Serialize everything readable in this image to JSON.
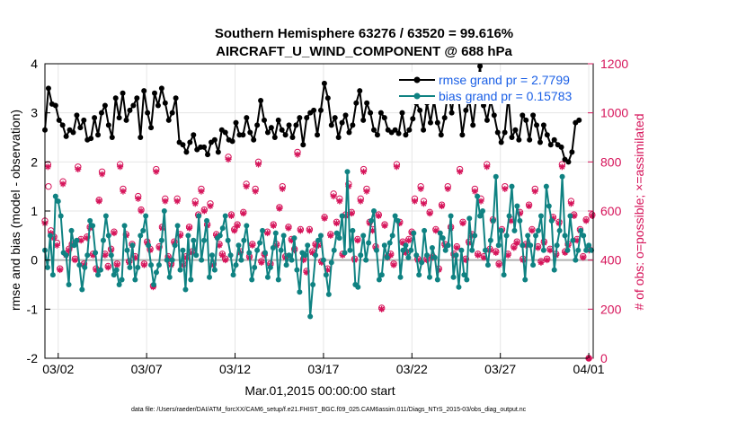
{
  "chart_data": {
    "type": "line",
    "title": "Southern Hemisphere 63276 / 63520 = 99.616%",
    "subtitle": "AIRCRAFT_U_WIND_COMPONENT @ 688 hPa",
    "xlabel": "Mar.01,2015 00:00:00 start",
    "ylabel_left": "rmse and bias (model - observation)",
    "ylabel_right": "# of obs: o=possible; ×=assimilated",
    "footnote": "data file: /Users/raeder/DAI/ATM_forcXX/CAM6_setup/f.e21.FHIST_BGC.f09_025.CAM6assim.011/Diags_NTrS_2015-03/obs_diag_output.nc",
    "x_range_days": [
      0.25,
      31.25
    ],
    "x_ticks": [
      {
        "day": 1,
        "label": "03/02"
      },
      {
        "day": 6,
        "label": "03/07"
      },
      {
        "day": 11,
        "label": "03/12"
      },
      {
        "day": 16,
        "label": "03/17"
      },
      {
        "day": 21,
        "label": "03/22"
      },
      {
        "day": 26,
        "label": "03/27"
      },
      {
        "day": 31,
        "label": "04/01"
      }
    ],
    "ylim_left": [
      -2,
      4
    ],
    "yticks_left": [
      "-2",
      "-1",
      "0",
      "1",
      "2",
      "3",
      "4"
    ],
    "ylim_right": [
      0,
      1200
    ],
    "yticks_right": [
      "0",
      "200",
      "400",
      "600",
      "800",
      "1000",
      "1200"
    ],
    "grid": true,
    "legend_position": "top-right",
    "colors": {
      "rmse": "#000000",
      "bias": "#0f8282",
      "obs": "#d6145a",
      "zero_line": "#b0b0b0",
      "legend_text": "#1a5fe6"
    },
    "series": [
      {
        "name": "rmse grand pr = 2.7799",
        "legend": "rmse grand pr = 2.7799",
        "axis": "left",
        "values": [
          2.65,
          3.5,
          3.18,
          3.15,
          2.85,
          2.75,
          2.52,
          2.65,
          2.6,
          2.95,
          2.7,
          2.85,
          2.45,
          2.48,
          2.9,
          2.55,
          3.0,
          3.15,
          2.75,
          2.5,
          3.3,
          2.9,
          3.4,
          2.85,
          3.05,
          3.15,
          3.3,
          2.5,
          3.45,
          3.0,
          2.7,
          3.4,
          3.15,
          3.5,
          3.2,
          2.85,
          3.0,
          3.3,
          2.4,
          2.35,
          2.2,
          2.4,
          2.55,
          2.25,
          2.3,
          2.3,
          2.15,
          2.4,
          2.45,
          2.2,
          2.65,
          2.6,
          2.45,
          2.42,
          2.8,
          2.55,
          2.55,
          2.9,
          2.6,
          2.45,
          2.75,
          3.25,
          2.85,
          2.6,
          2.7,
          2.5,
          2.85,
          2.65,
          2.55,
          2.75,
          2.5,
          2.75,
          2.9,
          2.35,
          2.9,
          3.0,
          3.05,
          2.55,
          3.05,
          3.6,
          3.3,
          2.75,
          2.9,
          2.5,
          2.8,
          2.95,
          2.6,
          2.75,
          3.2,
          3.45,
          2.85,
          3.2,
          3.0,
          2.65,
          2.55,
          3.0,
          2.9,
          2.65,
          2.6,
          2.65,
          2.58,
          3.0,
          2.55,
          2.65,
          2.88,
          3.2,
          3.05,
          2.65,
          3.2,
          2.8,
          3.25,
          2.8,
          2.55,
          2.9,
          3.45,
          3.0,
          3.55,
          3.25,
          2.55,
          3.05,
          3.25,
          2.75,
          3.35,
          3.95,
          3.15,
          2.85,
          3.25,
          2.95,
          2.6,
          2.4,
          2.6,
          3.35,
          2.5,
          2.65,
          2.45,
          2.95,
          2.85,
          2.45,
          2.95,
          2.75,
          2.4,
          2.75,
          2.55,
          2.35,
          2.45,
          2.35,
          2.3,
          2.05,
          2.0,
          2.2,
          2.8,
          2.85
        ],
        "start_day": 0.25,
        "step_days": 0.2
      },
      {
        "name": "bias grand pr = 0.15783",
        "legend": "bias grand pr = 0.15783",
        "axis": "left",
        "values": [
          0.2,
          -0.15,
          0.5,
          -0.3,
          1.3,
          1.2,
          0.9,
          0.15,
          0.1,
          -0.5,
          0.6,
          0.3,
          0.4,
          -0.1,
          -0.6,
          -0.15,
          0.1,
          0.8,
          0.7,
          0.15,
          -0.3,
          -0.2,
          0.4,
          0.9,
          0.5,
          0.1,
          -0.3,
          -0.2,
          -0.5,
          -0.4,
          0.7,
          0.2,
          -0.15,
          0.3,
          -0.4,
          -0.15,
          0.5,
          0.6,
          0.9,
          0.3,
          -0.1,
          -0.5,
          -0.25,
          -0.1,
          0.4,
          1.0,
          0.0,
          -0.35,
          0.0,
          0.3,
          0.7,
          -0.2,
          0.2,
          -0.6,
          0.5,
          -0.4,
          0.4,
          0.1,
          0.9,
          0.0,
          0.4,
          0.8,
          -0.35,
          0.1,
          -0.2,
          0.45,
          0.5,
          0.65,
          0.9,
          0.4,
          0.1,
          -0.3,
          -0.1,
          0.3,
          0.0,
          0.4,
          0.7,
          0.15,
          -0.4,
          -0.15,
          0.2,
          0.35,
          0.6,
          0.15,
          -0.35,
          -0.15,
          0.25,
          0.55,
          -0.4,
          0.2,
          0.5,
          -0.1,
          0.1,
          0.0,
          0.45,
          -0.2,
          -0.65,
          0.15,
          0.1,
          0.3,
          -1.15,
          -0.5,
          0.1,
          0.4,
          0.5,
          0.0,
          -0.3,
          -0.7,
          -0.05,
          0.2,
          0.55,
          0.45,
          0.9,
          0.15,
          1.8,
          0.2,
          0.6,
          -0.5,
          -0.55,
          0.1,
          0.5,
          0.0,
          0.35,
          0.8,
          1.0,
          0.2,
          -0.4,
          -0.3,
          0.3,
          0.05,
          0.35,
          0.5,
          0.9,
          0.8,
          -0.35,
          0.2,
          0.3,
          0.05,
          0.2,
          0.55,
          0.1,
          -0.3,
          -0.05,
          0.6,
          0.1,
          -0.35,
          0.25,
          0.05,
          -0.4,
          0.55,
          0.45,
          0.2,
          0.3,
          0.9,
          -0.35,
          0.1,
          -0.55,
          0.2,
          -0.3,
          -0.4,
          0.85,
          0.2,
          0.5,
          1.3,
          0.9,
          1.0,
          0.2,
          -0.1,
          0.4,
          0.8,
          1.7,
          0.3,
          0.6,
          -0.3,
          0.5,
          0.9,
          1.5,
          0.6,
          1.1,
          0.8,
          0.3,
          -0.4,
          0.5,
          0.3,
          -0.1,
          0.5,
          0.6,
          0.9,
          0.2,
          1.5,
          1.1,
          0.8,
          -0.2,
          0.3,
          0.6,
          1.7,
          0.5,
          0.2,
          0.9,
          0.4,
          0.0,
          0.2,
          0.6,
          0.5,
          0.2,
          0.3,
          0.2,
          0.55
        ],
        "start_day": 0.25,
        "step_days": 0.15
      },
      {
        "name": "# of obs assimilated",
        "axis": "right",
        "marker": "asterisk",
        "values": [
          550,
          780,
          510,
          490,
          460,
          360,
          710,
          420,
          440,
          460,
          400,
          770,
          480,
          380,
          490,
          530,
          420,
          360,
          640,
          750,
          420,
          370,
          440,
          510,
          380,
          780,
          680,
          500,
          390,
          460,
          410,
          650,
          600,
          380,
          470,
          440,
          290,
          760,
          450,
          530,
          640,
          410,
          380,
          470,
          640,
          500,
          380,
          410,
          530,
          430,
          630,
          580,
          680,
          600,
          540,
          620,
          380,
          500,
          460,
          420,
          400,
          810,
          580,
          520,
          540,
          430,
          590,
          700,
          410,
          460,
          680,
          790,
          390,
          420,
          510,
          380,
          540,
          460,
          610,
          690,
          410,
          530,
          480,
          440,
          830,
          520,
          400,
          350,
          520,
          430,
          460,
          460,
          390,
          570,
          360,
          500,
          660,
          550,
          640,
          420,
          580,
          700,
          590,
          400,
          480,
          640,
          760,
          680,
          550,
          520,
          450,
          580,
          200,
          540,
          410,
          420,
          380,
          780,
          550,
          470,
          430,
          480,
          510,
          640,
          400,
          690,
          630,
          400,
          590,
          410,
          520,
          360,
          620,
          460,
          690,
          530,
          420,
          450,
          760,
          550,
          400,
          470,
          500,
          680,
          420,
          640,
          410,
          780,
          440,
          560,
          430,
          380,
          520,
          690,
          420,
          560,
          450,
          470,
          590,
          400,
          460,
          620,
          520,
          680,
          450,
          390,
          470,
          400,
          440,
          570,
          420,
          550,
          780,
          430,
          460,
          630,
          580,
          480,
          520,
          410,
          560,
          440,
          580,
          390,
          540,
          470,
          420
        ],
        "start_day": 0.25,
        "step_days": 0.17
      },
      {
        "name": "# of obs possible",
        "axis": "right",
        "marker": "circle",
        "values": [
          560,
          790,
          520,
          495,
          470,
          365,
          720,
          425,
          445,
          465,
          405,
          780,
          485,
          385,
          495,
          535,
          425,
          365,
          645,
          760,
          425,
          375,
          445,
          515,
          385,
          790,
          690,
          505,
          395,
          465,
          415,
          660,
          605,
          385,
          475,
          445,
          295,
          770,
          455,
          535,
          650,
          415,
          385,
          475,
          650,
          505,
          385,
          415,
          535,
          435,
          640,
          585,
          690,
          605,
          545,
          630,
          385,
          505,
          465,
          425,
          405,
          820,
          585,
          525,
          545,
          435,
          595,
          710,
          415,
          465,
          690,
          800,
          395,
          425,
          515,
          385,
          545,
          465,
          615,
          700,
          415,
          535,
          485,
          445,
          840,
          525,
          405,
          355,
          525,
          435,
          465,
          465,
          395,
          575,
          365,
          505,
          670,
          555,
          650,
          425,
          585,
          710,
          595,
          405,
          485,
          650,
          770,
          690,
          555,
          525,
          455,
          585,
          205,
          545,
          415,
          425,
          385,
          790,
          555,
          475,
          435,
          485,
          515,
          650,
          405,
          700,
          640,
          405,
          595,
          415,
          525,
          365,
          625,
          465,
          700,
          535,
          425,
          455,
          770,
          555,
          405,
          475,
          505,
          690,
          425,
          650,
          415,
          790,
          445,
          565,
          435,
          385,
          525,
          700,
          425,
          565,
          455,
          475,
          595,
          405,
          465,
          625,
          525,
          690,
          455,
          395,
          475,
          405,
          445,
          575,
          425,
          555,
          790,
          435,
          465,
          640,
          585,
          485,
          525,
          415,
          565,
          445,
          585,
          395,
          545,
          475,
          425
        ],
        "start_day": 0.25,
        "step_days": 0.17
      }
    ],
    "extra_points": [
      {
        "series": "# of obs possible",
        "day": 0.45,
        "value": 700
      },
      {
        "series": "# of obs possible",
        "day": 31.0,
        "value": 0
      }
    ]
  }
}
